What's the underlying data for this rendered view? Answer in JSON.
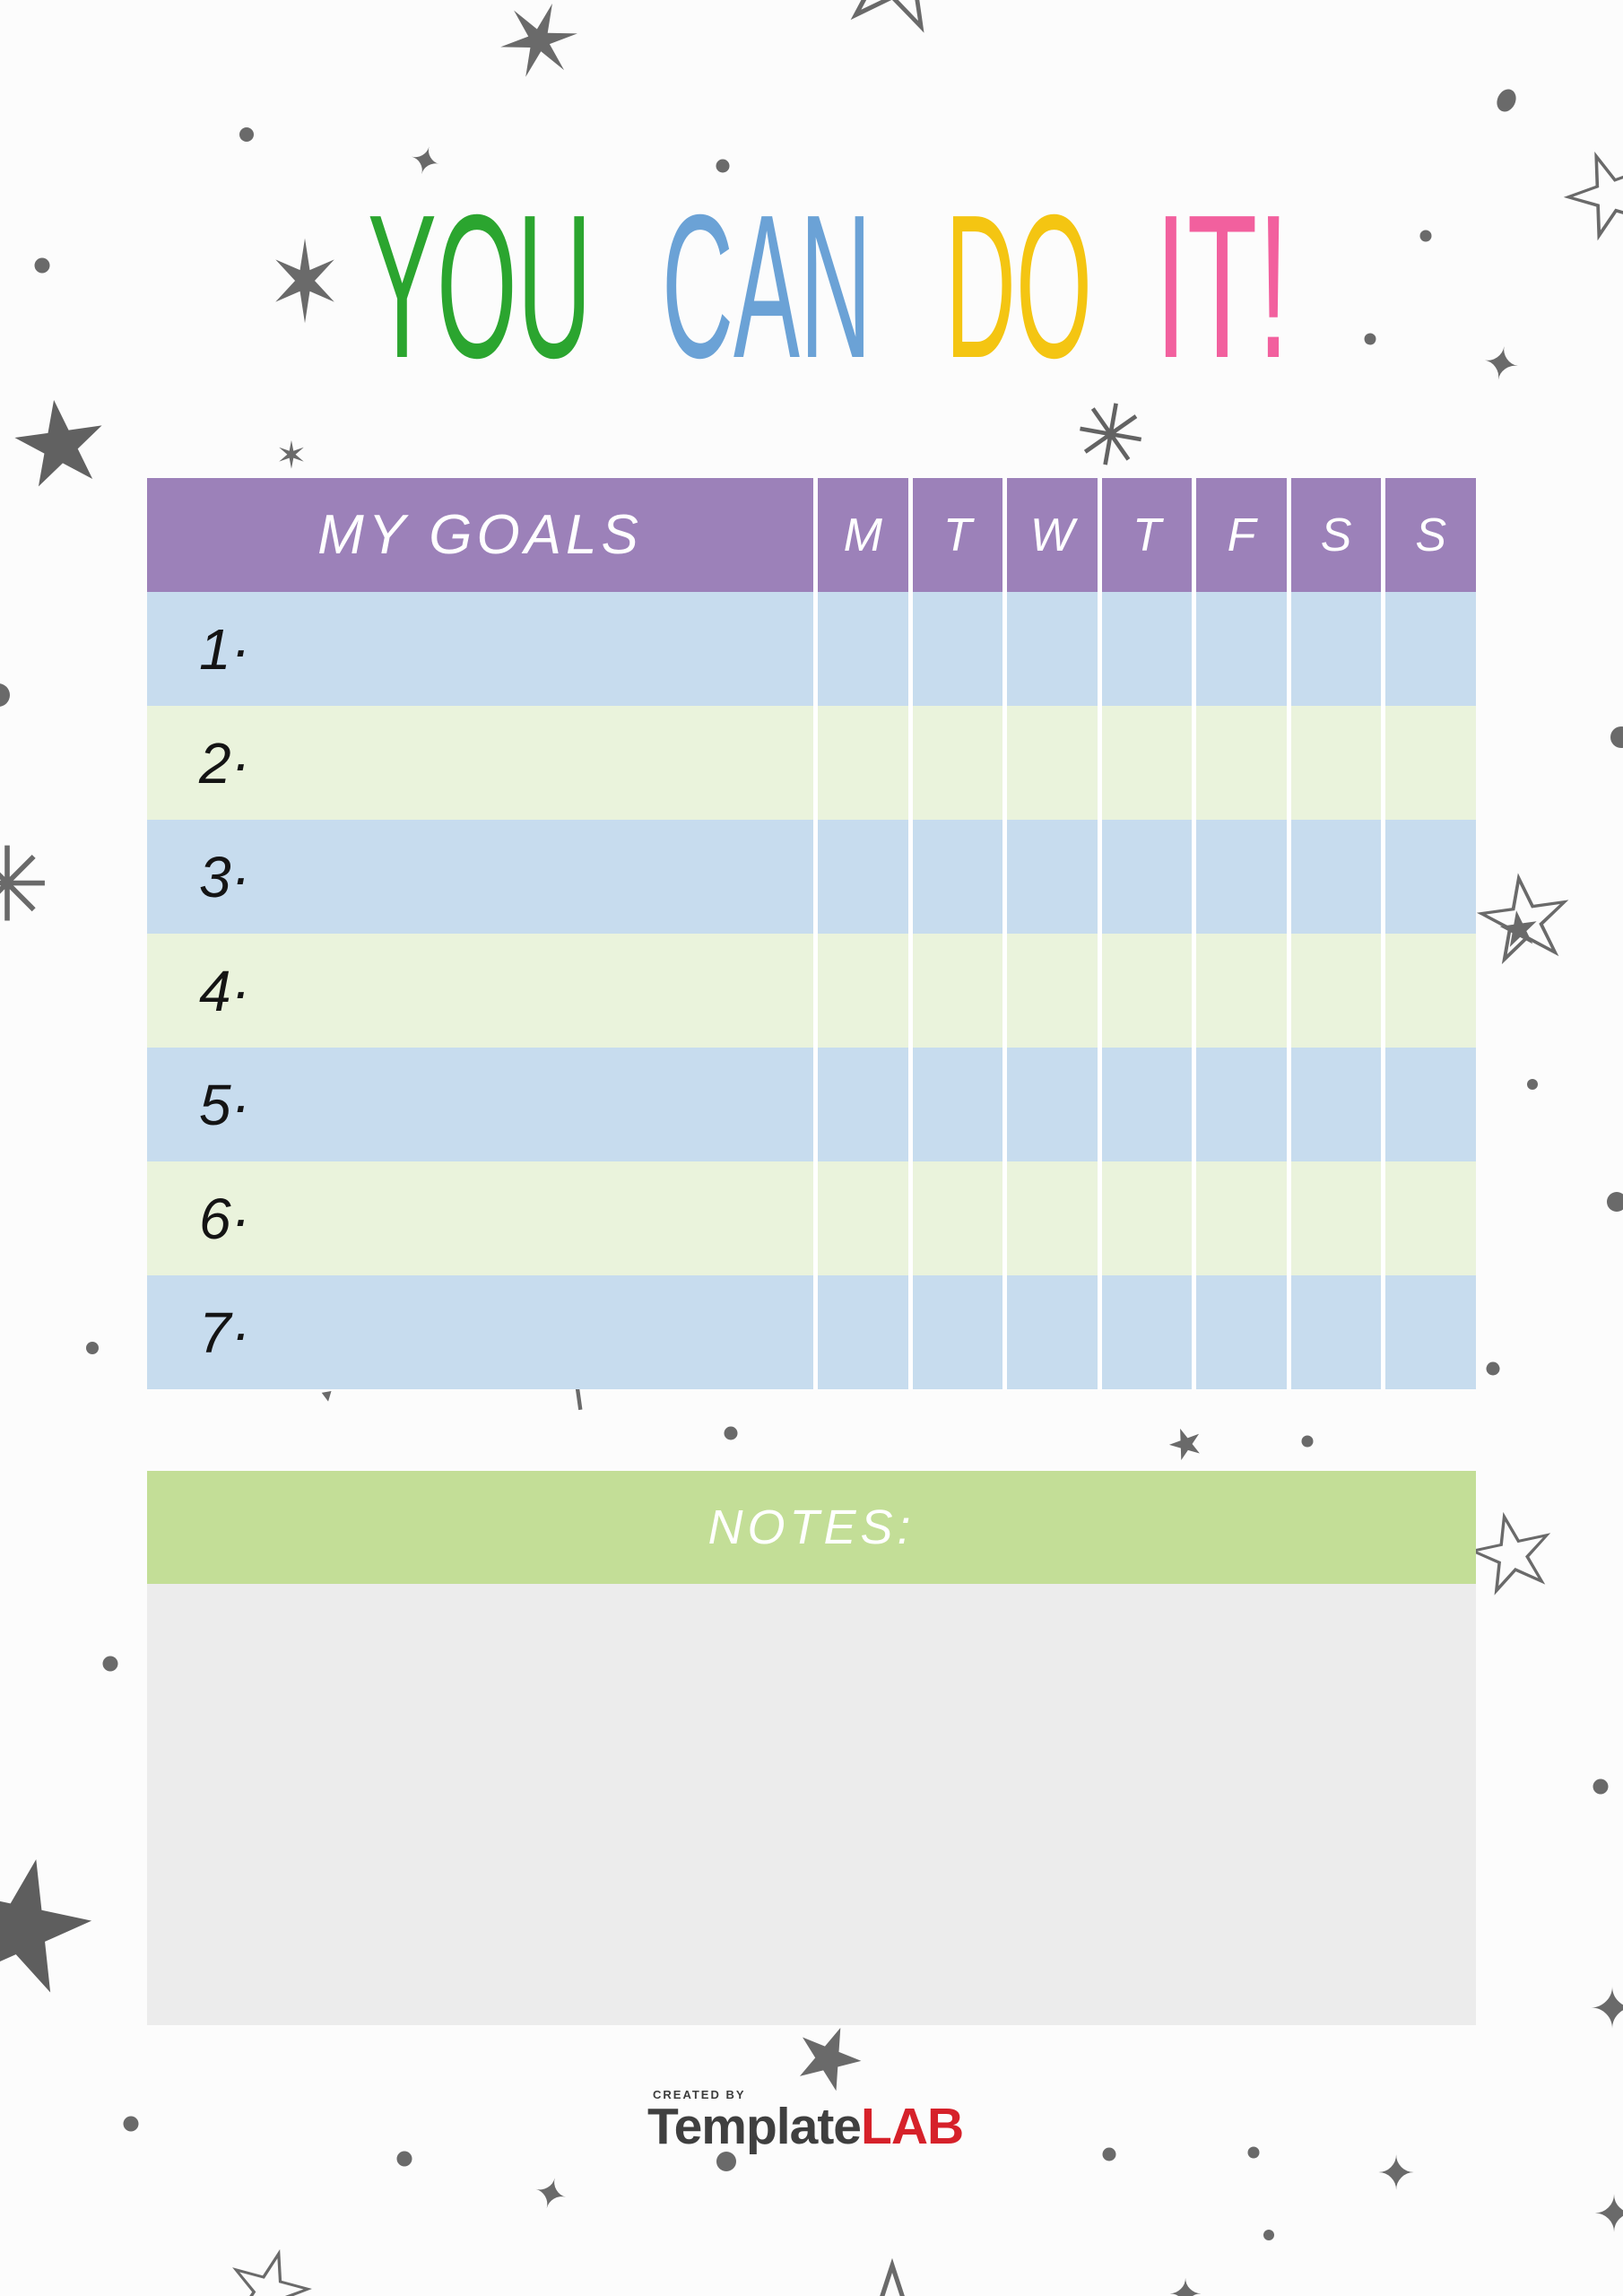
{
  "page": {
    "background": "#fcfcfc",
    "title": {
      "words": [
        {
          "text": "YOU",
          "color": "#2ba52f"
        },
        {
          "text": "CAN",
          "color": "#6ba2d6"
        },
        {
          "text": "DO",
          "color": "#f4c512"
        },
        {
          "text": "IT!",
          "color": "#f2609e"
        }
      ]
    }
  },
  "tracker": {
    "goals_header": "MY GOALS",
    "day_headers": [
      "M",
      "T",
      "W",
      "T",
      "F",
      "S",
      "S"
    ],
    "rows": [
      "1·",
      "2·",
      "3·",
      "4·",
      "5·",
      "6·",
      "7·"
    ],
    "header_bg": "#9c81b9",
    "row_color_blue": "#c7dcee",
    "row_color_green": "#eaf3dc",
    "grid_line_color": "#ffffff"
  },
  "notes": {
    "label": "NOTES:",
    "header_bg": "#c3de97",
    "body_bg": "#ececec"
  },
  "footer": {
    "created_by": "CREATED BY",
    "brand_name": "Template",
    "brand_suffix": "LAB",
    "brand_name_color": "#3f3f3f",
    "brand_suffix_color": "#d6212a"
  },
  "icons": {
    "star_filled": "★",
    "star_outline": "☆",
    "sparkle_four_point": "✦",
    "burst_six_point": "✶",
    "burst_eight_point": "✳",
    "arrow_up": "↑",
    "tick_mark": "▾"
  },
  "doodle_color": "#6a6a6a"
}
